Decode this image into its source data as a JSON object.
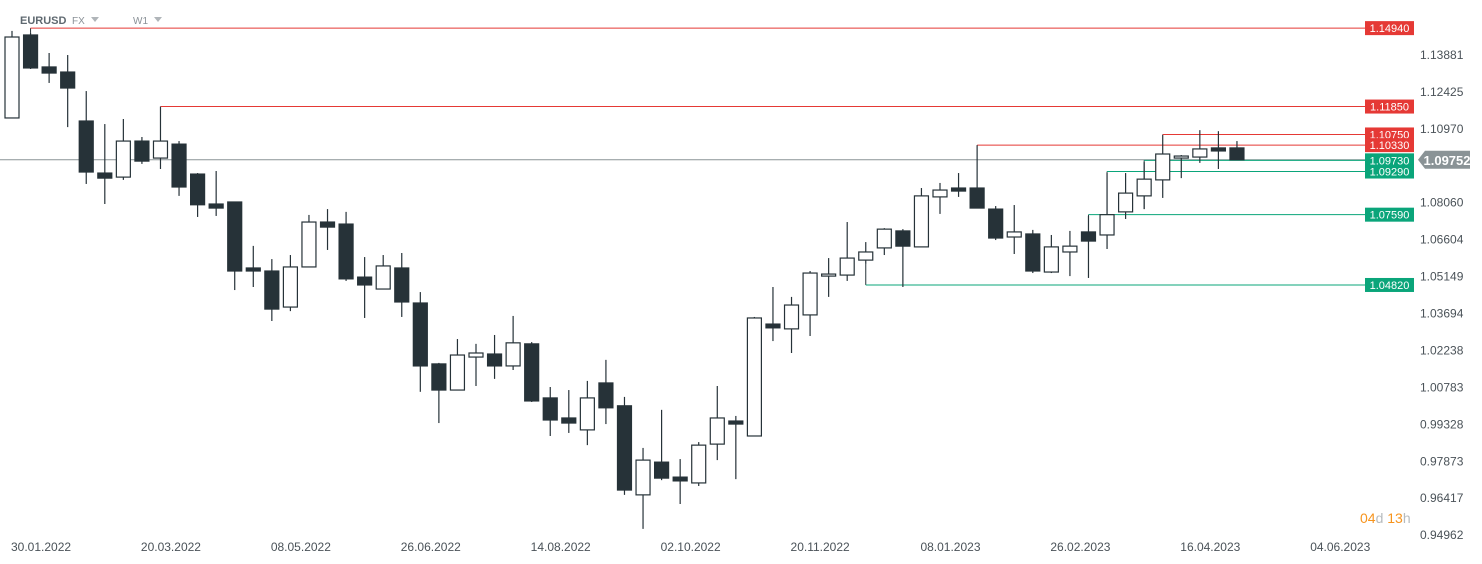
{
  "header": {
    "symbol": "EURUSD",
    "market": "FX",
    "interval": "W1"
  },
  "timer": {
    "days": "04",
    "days_unit": "d",
    "hours": "13",
    "hours_unit": "h"
  },
  "colors": {
    "bull_fill": "#ffffff",
    "bear_fill": "#263238",
    "candle_stroke": "#263238",
    "resistance": "#e53935",
    "support": "#0aa57a",
    "current_price": "#8a9396",
    "axis_text": "#4a5258"
  },
  "chart_data": {
    "type": "candlestick",
    "title": "",
    "xlabel": "",
    "ylabel": "",
    "ylim": [
      0.94962,
      1.1494
    ],
    "grid": false,
    "x_tick_labels": [
      "30.01.2022",
      "20.03.2022",
      "08.05.2022",
      "26.06.2022",
      "14.08.2022",
      "02.10.2022",
      "20.11.2022",
      "08.01.2023",
      "26.02.2023",
      "16.04.2023",
      "04.06.2023"
    ],
    "y_tick_labels": [
      "1.13881",
      "1.12425",
      "1.10970",
      "1.08060",
      "1.06604",
      "1.05149",
      "1.03694",
      "1.02238",
      "1.00783",
      "0.99328",
      "0.97873",
      "0.96417",
      "0.94962"
    ],
    "dates": [
      "30.01.2022",
      "06.02.2022",
      "13.02.2022",
      "20.02.2022",
      "27.02.2022",
      "06.03.2022",
      "13.03.2022",
      "20.03.2022",
      "27.03.2022",
      "03.04.2022",
      "10.04.2022",
      "17.04.2022",
      "24.04.2022",
      "01.05.2022",
      "08.05.2022",
      "15.05.2022",
      "22.05.2022",
      "29.05.2022",
      "05.06.2022",
      "12.06.2022",
      "19.06.2022",
      "26.06.2022",
      "03.07.2022",
      "10.07.2022",
      "17.07.2022",
      "24.07.2022",
      "31.07.2022",
      "07.08.2022",
      "14.08.2022",
      "21.08.2022",
      "28.08.2022",
      "04.09.2022",
      "11.09.2022",
      "18.09.2022",
      "25.09.2022",
      "02.10.2022",
      "09.10.2022",
      "16.10.2022",
      "23.10.2022",
      "30.10.2022",
      "06.11.2022",
      "13.11.2022",
      "20.11.2022",
      "27.11.2022",
      "04.12.2022",
      "11.12.2022",
      "18.12.2022",
      "25.12.2022",
      "01.01.2023",
      "08.01.2023",
      "15.01.2023",
      "22.01.2023",
      "29.01.2023",
      "05.02.2023",
      "12.02.2023",
      "19.02.2023",
      "26.02.2023",
      "05.03.2023",
      "12.03.2023",
      "19.03.2023",
      "26.03.2023",
      "02.04.2023",
      "09.04.2023",
      "16.04.2023",
      "23.04.2023",
      "30.04.2023",
      "07.05.2023"
    ],
    "ohlc": [
      [
        1.114,
        1.1483,
        1.114,
        1.1459
      ],
      [
        1.1467,
        1.1475,
        1.1333,
        1.1337
      ],
      [
        1.1341,
        1.1396,
        1.1278,
        1.1317
      ],
      [
        1.1321,
        1.1388,
        1.1104,
        1.1258
      ],
      [
        1.1128,
        1.1246,
        1.088,
        1.0927
      ],
      [
        1.0923,
        1.1116,
        1.0801,
        1.0903
      ],
      [
        1.0907,
        1.1136,
        1.0896,
        1.1049
      ],
      [
        1.1049,
        1.1065,
        1.0959,
        1.097
      ],
      [
        1.0982,
        1.1185,
        1.0939,
        1.1049
      ],
      [
        1.1037,
        1.1049,
        1.0833,
        1.0868
      ],
      [
        1.0919,
        1.0923,
        1.075,
        1.0798
      ],
      [
        1.0801,
        1.0931,
        1.0754,
        1.0785
      ],
      [
        1.0809,
        1.0809,
        1.0462,
        1.0537
      ],
      [
        1.0549,
        1.0636,
        1.0474,
        1.0537
      ],
      [
        1.0537,
        1.0584,
        1.034,
        1.0387
      ],
      [
        1.0395,
        1.06,
        1.0379,
        1.0553
      ],
      [
        1.0553,
        1.0758,
        1.0553,
        1.073
      ],
      [
        1.073,
        1.0781,
        1.062,
        1.071
      ],
      [
        1.0722,
        1.077,
        1.0498,
        1.0506
      ],
      [
        1.0513,
        1.0592,
        1.0352,
        1.0482
      ],
      [
        1.0466,
        1.06,
        1.0466,
        1.0557
      ],
      [
        1.0549,
        1.0608,
        1.0356,
        1.0415
      ],
      [
        1.0411,
        1.0454,
        1.0061,
        1.0163
      ],
      [
        1.0171,
        1.0175,
        0.9938,
        1.0068
      ],
      [
        1.0068,
        1.0269,
        1.0068,
        1.0206
      ],
      [
        1.0198,
        1.025,
        1.0084,
        1.0214
      ],
      [
        1.021,
        1.0285,
        1.0112,
        1.0163
      ],
      [
        1.0163,
        1.036,
        1.0147,
        1.0254
      ],
      [
        1.025,
        1.0257,
        1.0021,
        1.0025
      ],
      [
        1.0037,
        1.008,
        0.9887,
        0.995
      ],
      [
        0.9958,
        1.0068,
        0.9899,
        0.9938
      ],
      [
        0.9911,
        1.0104,
        0.9851,
        1.0037
      ],
      [
        1.0096,
        1.0187,
        0.9934,
        0.9998
      ],
      [
        1.0006,
        1.0041,
        0.9655,
        0.9674
      ],
      [
        0.9655,
        0.984,
        0.9521,
        0.9792
      ],
      [
        0.9784,
        0.999,
        0.9713,
        0.9721
      ],
      [
        0.9725,
        0.9796,
        0.9619,
        0.971
      ],
      [
        0.9702,
        0.9863,
        0.969,
        0.9851
      ],
      [
        0.9855,
        1.0084,
        0.9792,
        0.9958
      ],
      [
        0.9946,
        0.9966,
        0.9717,
        0.9934
      ],
      [
        0.9887,
        1.0356,
        0.9887,
        1.0352
      ],
      [
        1.0328,
        1.0474,
        1.0261,
        1.0313
      ],
      [
        1.0309,
        1.0435,
        1.0214,
        1.0403
      ],
      [
        1.0364,
        1.0537,
        1.0281,
        1.0529
      ],
      [
        1.0517,
        1.0588,
        1.0435,
        1.0525
      ],
      [
        1.0521,
        1.073,
        1.0498,
        1.0588
      ],
      [
        1.058,
        1.0651,
        1.0565,
        1.0612
      ],
      [
        1.0628,
        1.0706,
        1.06,
        1.0702
      ],
      [
        1.0695,
        1.0702,
        1.0474,
        1.0635
      ],
      [
        1.0632,
        1.0864,
        1.0632,
        1.0833
      ],
      [
        1.0829,
        1.0884,
        1.0762,
        1.0856
      ],
      [
        1.0864,
        1.0923,
        1.0829,
        1.0852
      ],
      [
        1.0864,
        1.1033,
        1.0785,
        1.0785
      ],
      [
        1.0781,
        1.0793,
        1.0659,
        1.0667
      ],
      [
        1.0671,
        1.0797,
        1.0604,
        1.0691
      ],
      [
        1.0683,
        1.0699,
        1.0529,
        1.0537
      ],
      [
        1.0533,
        1.0679,
        1.0529,
        1.0632
      ],
      [
        1.0612,
        1.0695,
        1.0517,
        1.0635
      ],
      [
        1.0691,
        1.0754,
        1.051,
        1.0655
      ],
      [
        1.0679,
        1.0923,
        1.0624,
        1.0759
      ],
      [
        1.077,
        1.0923,
        1.0742,
        1.0844
      ],
      [
        1.0833,
        1.0966,
        1.0781,
        1.0899
      ],
      [
        1.0896,
        1.1073,
        1.0825,
        1.0998
      ],
      [
        1.0982,
        1.0994,
        1.0903,
        1.099
      ],
      [
        1.0986,
        1.1092,
        1.0963,
        1.1018
      ],
      [
        1.1022,
        1.1088,
        1.0939,
        1.101
      ],
      [
        1.1022,
        1.1049,
        1.0975,
        1.09752
      ]
    ],
    "levels": [
      {
        "label": "1.14940",
        "value": 1.1494,
        "kind": "resistance",
        "from": "06.02.2022"
      },
      {
        "label": "1.11850",
        "value": 1.1185,
        "kind": "resistance",
        "from": "27.03.2022"
      },
      {
        "label": "1.10750",
        "value": 1.1075,
        "kind": "resistance",
        "from": "09.04.2023"
      },
      {
        "label": "1.10330",
        "value": 1.1033,
        "kind": "resistance",
        "from": "29.01.2023"
      },
      {
        "label": "1.09730",
        "value": 1.0973,
        "kind": "support",
        "from": "02.04.2023"
      },
      {
        "label": "1.09290",
        "value": 1.0929,
        "kind": "support",
        "from": "19.03.2023"
      },
      {
        "label": "1.07590",
        "value": 1.0759,
        "kind": "support",
        "from": "12.03.2023"
      },
      {
        "label": "1.04820",
        "value": 1.0482,
        "kind": "support",
        "from": "18.12.2022"
      }
    ],
    "current_price": {
      "label": "1.09752",
      "value": 1.09752
    }
  }
}
